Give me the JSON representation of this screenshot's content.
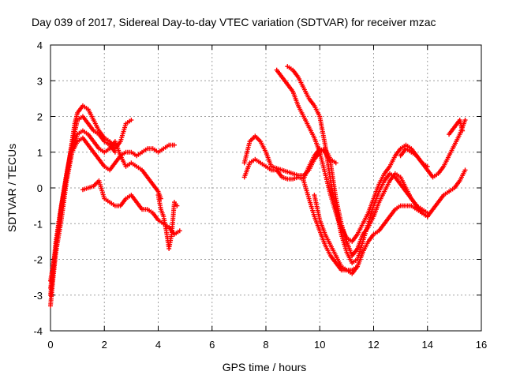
{
  "chart_data": {
    "type": "scatter",
    "title": "Day 039 of 2017, Sidereal Day-to-day VTEC variation (SDTVAR) for receiver mzac",
    "xlabel": "GPS time / hours",
    "ylabel": "SDTVAR / TECUs",
    "xlim": [
      0,
      16
    ],
    "ylim": [
      -4,
      4
    ],
    "xticks": [
      0,
      2,
      4,
      6,
      8,
      10,
      12,
      14,
      16
    ],
    "yticks": [
      -4,
      -3,
      -2,
      -1,
      0,
      1,
      2,
      3,
      4
    ],
    "grid": true,
    "marker": "+",
    "color": "#ff0000",
    "series": [
      {
        "x": [
          0.0,
          0.1,
          0.2,
          0.3,
          0.5,
          0.7,
          0.9,
          1.0,
          1.2,
          1.4,
          1.6,
          1.8,
          2.0,
          2.2,
          2.4,
          2.6,
          2.8,
          3.0
        ],
        "y": [
          -3.3,
          -2.5,
          -1.8,
          -1.0,
          -0.1,
          0.8,
          1.8,
          2.1,
          2.3,
          2.2,
          1.9,
          1.6,
          1.4,
          1.3,
          1.1,
          1.3,
          1.8,
          1.9
        ]
      },
      {
        "x": [
          0.0,
          0.1,
          0.2,
          0.4,
          0.6,
          0.8,
          1.0,
          1.2,
          1.4,
          1.6,
          1.8,
          2.0,
          2.2,
          2.4
        ],
        "y": [
          -3.0,
          -2.3,
          -1.5,
          -0.5,
          0.4,
          1.2,
          1.9,
          2.0,
          1.8,
          1.6,
          1.5,
          1.3,
          1.2,
          1.0
        ]
      },
      {
        "x": [
          0.0,
          0.2,
          0.4,
          0.6,
          0.8,
          1.0,
          1.2,
          1.4,
          1.6,
          1.8,
          2.0,
          2.2,
          2.4,
          2.6,
          2.8,
          3.0,
          3.2,
          3.4,
          3.6,
          3.8,
          4.0,
          4.2,
          4.4,
          4.6
        ],
        "y": [
          -2.6,
          -1.7,
          -0.6,
          0.4,
          1.0,
          1.3,
          1.4,
          1.2,
          1.0,
          0.8,
          0.6,
          0.5,
          0.7,
          0.9,
          1.0,
          1.0,
          0.9,
          1.0,
          1.1,
          1.1,
          1.0,
          1.1,
          1.2,
          1.2
        ]
      },
      {
        "x": [
          0.0,
          0.2,
          0.4,
          0.6,
          0.8,
          1.0,
          1.2,
          1.4,
          1.6,
          1.8,
          2.0,
          2.2,
          2.4,
          2.6,
          2.8,
          3.0,
          3.2,
          3.4,
          3.6,
          3.8,
          4.0,
          4.1
        ],
        "y": [
          -2.8,
          -1.8,
          -0.9,
          0.2,
          1.0,
          1.5,
          1.6,
          1.5,
          1.3,
          1.1,
          1.0,
          1.1,
          1.3,
          0.9,
          0.6,
          0.7,
          0.6,
          0.5,
          0.3,
          0.1,
          -0.1,
          -0.3
        ]
      },
      {
        "x": [
          1.2,
          1.4,
          1.6,
          1.8,
          2.0,
          2.2,
          2.4,
          2.6,
          2.8,
          3.0,
          3.2,
          3.4,
          3.6,
          3.8,
          4.0,
          4.2,
          4.4,
          4.6,
          4.8
        ],
        "y": [
          -0.05,
          0.0,
          0.05,
          0.2,
          -0.3,
          -0.4,
          -0.5,
          -0.5,
          -0.3,
          -0.2,
          -0.4,
          -0.6,
          -0.6,
          -0.7,
          -0.9,
          -1.0,
          -1.1,
          -1.3,
          -1.2
        ]
      },
      {
        "x": [
          4.0,
          4.1,
          4.2,
          4.3,
          4.4,
          4.5,
          4.6,
          4.7
        ],
        "y": [
          -0.2,
          -0.6,
          -0.8,
          -1.2,
          -1.7,
          -1.3,
          -0.4,
          -0.5
        ]
      },
      {
        "x": [
          7.2,
          7.4,
          7.6,
          7.8,
          8.0,
          8.2,
          8.4,
          8.6,
          8.8,
          9.0,
          9.2,
          9.4,
          9.6,
          9.8,
          10.0,
          10.2,
          10.4,
          10.6,
          10.8,
          11.0,
          11.2,
          11.4,
          11.6,
          11.8,
          12.0,
          12.2,
          12.4,
          12.6,
          12.8,
          13.0,
          13.2,
          13.4,
          13.6,
          13.8,
          14.0
        ],
        "y": [
          0.3,
          0.7,
          0.8,
          0.7,
          0.6,
          0.5,
          0.5,
          0.3,
          0.25,
          0.25,
          0.3,
          0.25,
          0.6,
          0.9,
          1.1,
          1.0,
          0.7,
          -0.3,
          -1.0,
          -1.5,
          -1.9,
          -1.7,
          -1.3,
          -1.1,
          -0.8,
          -0.4,
          -0.1,
          0.2,
          0.4,
          0.3,
          0.0,
          -0.3,
          -0.5,
          -0.7,
          -0.8
        ]
      },
      {
        "x": [
          7.2,
          7.4,
          7.6,
          7.8,
          8.0,
          8.2,
          8.4,
          8.6,
          8.8,
          9.0,
          9.2,
          9.4,
          9.6,
          9.8,
          10.0,
          10.2,
          10.4,
          10.6
        ],
        "y": [
          0.7,
          1.3,
          1.45,
          1.3,
          1.0,
          0.6,
          0.55,
          0.5,
          0.45,
          0.4,
          0.35,
          0.35,
          0.5,
          0.8,
          1.0,
          1.1,
          0.8,
          0.7
        ]
      },
      {
        "x": [
          8.4,
          8.6,
          8.8,
          9.0,
          9.2,
          9.4,
          9.6,
          9.8,
          10.0,
          10.2,
          10.4,
          10.6,
          10.8,
          11.0,
          11.2,
          11.4,
          11.6,
          11.8,
          12.0,
          12.2,
          12.4,
          12.6,
          12.8,
          13.0,
          13.2,
          13.4,
          13.6,
          13.8,
          14.0,
          14.2,
          14.4,
          14.6,
          14.8,
          15.0,
          15.2,
          15.4
        ],
        "y": [
          3.3,
          3.1,
          2.9,
          2.7,
          2.3,
          2.0,
          1.7,
          1.4,
          1.0,
          0.4,
          -0.2,
          -0.7,
          -1.1,
          -1.4,
          -1.5,
          -1.3,
          -1.0,
          -0.7,
          -0.3,
          0.1,
          0.4,
          0.6,
          0.9,
          1.1,
          1.2,
          1.1,
          0.9,
          0.7,
          0.5,
          0.3,
          0.4,
          0.6,
          0.9,
          1.2,
          1.5,
          1.9
        ]
      },
      {
        "x": [
          8.8,
          9.0,
          9.2,
          9.4,
          9.6,
          9.8,
          10.0,
          10.2,
          10.4,
          10.6,
          10.8,
          11.0,
          11.2,
          11.4,
          11.6,
          11.8,
          12.0,
          12.2,
          12.4,
          12.6,
          12.8,
          13.0,
          13.2,
          13.4,
          13.6,
          13.8,
          14.0
        ],
        "y": [
          3.4,
          3.3,
          3.1,
          2.8,
          2.5,
          2.3,
          2.0,
          1.2,
          0.2,
          -0.6,
          -1.3,
          -1.8,
          -2.1,
          -2.0,
          -1.5,
          -1.0,
          -0.5,
          -0.1,
          0.2,
          0.4,
          0.3,
          0.1,
          -0.1,
          -0.3,
          -0.5,
          -0.6,
          -0.7
        ]
      },
      {
        "x": [
          9.8,
          10.0,
          10.2,
          10.4,
          10.6,
          10.8,
          11.0,
          11.2,
          11.4,
          11.6,
          11.8,
          12.0,
          12.2,
          12.4,
          12.6,
          12.8,
          13.0,
          13.2,
          13.4,
          13.6,
          13.8,
          14.0,
          14.2,
          14.4,
          14.6,
          14.8,
          15.0,
          15.2,
          15.4
        ],
        "y": [
          -0.2,
          -0.9,
          -1.3,
          -1.6,
          -1.9,
          -2.2,
          -2.3,
          -2.3,
          -2.2,
          -1.8,
          -1.5,
          -1.3,
          -1.2,
          -1.0,
          -0.8,
          -0.6,
          -0.5,
          -0.5,
          -0.5,
          -0.6,
          -0.7,
          -0.8,
          -0.6,
          -0.4,
          -0.2,
          -0.1,
          0.0,
          0.2,
          0.5
        ]
      },
      {
        "x": [
          9.4,
          9.6,
          9.8,
          10.0,
          10.2,
          10.4,
          10.6,
          10.8,
          11.0,
          11.2,
          11.4
        ],
        "y": [
          0.2,
          -0.3,
          -0.8,
          -1.2,
          -1.6,
          -1.9,
          -2.1,
          -2.3,
          -2.3,
          -2.4,
          -2.2
        ]
      },
      {
        "x": [
          13.0,
          13.2,
          13.4,
          13.6,
          13.8,
          14.0
        ],
        "y": [
          0.9,
          1.1,
          1.0,
          0.9,
          0.7,
          0.6
        ]
      },
      {
        "x": [
          14.8,
          15.0,
          15.2,
          15.3
        ],
        "y": [
          1.5,
          1.7,
          1.9,
          1.6
        ]
      }
    ]
  }
}
